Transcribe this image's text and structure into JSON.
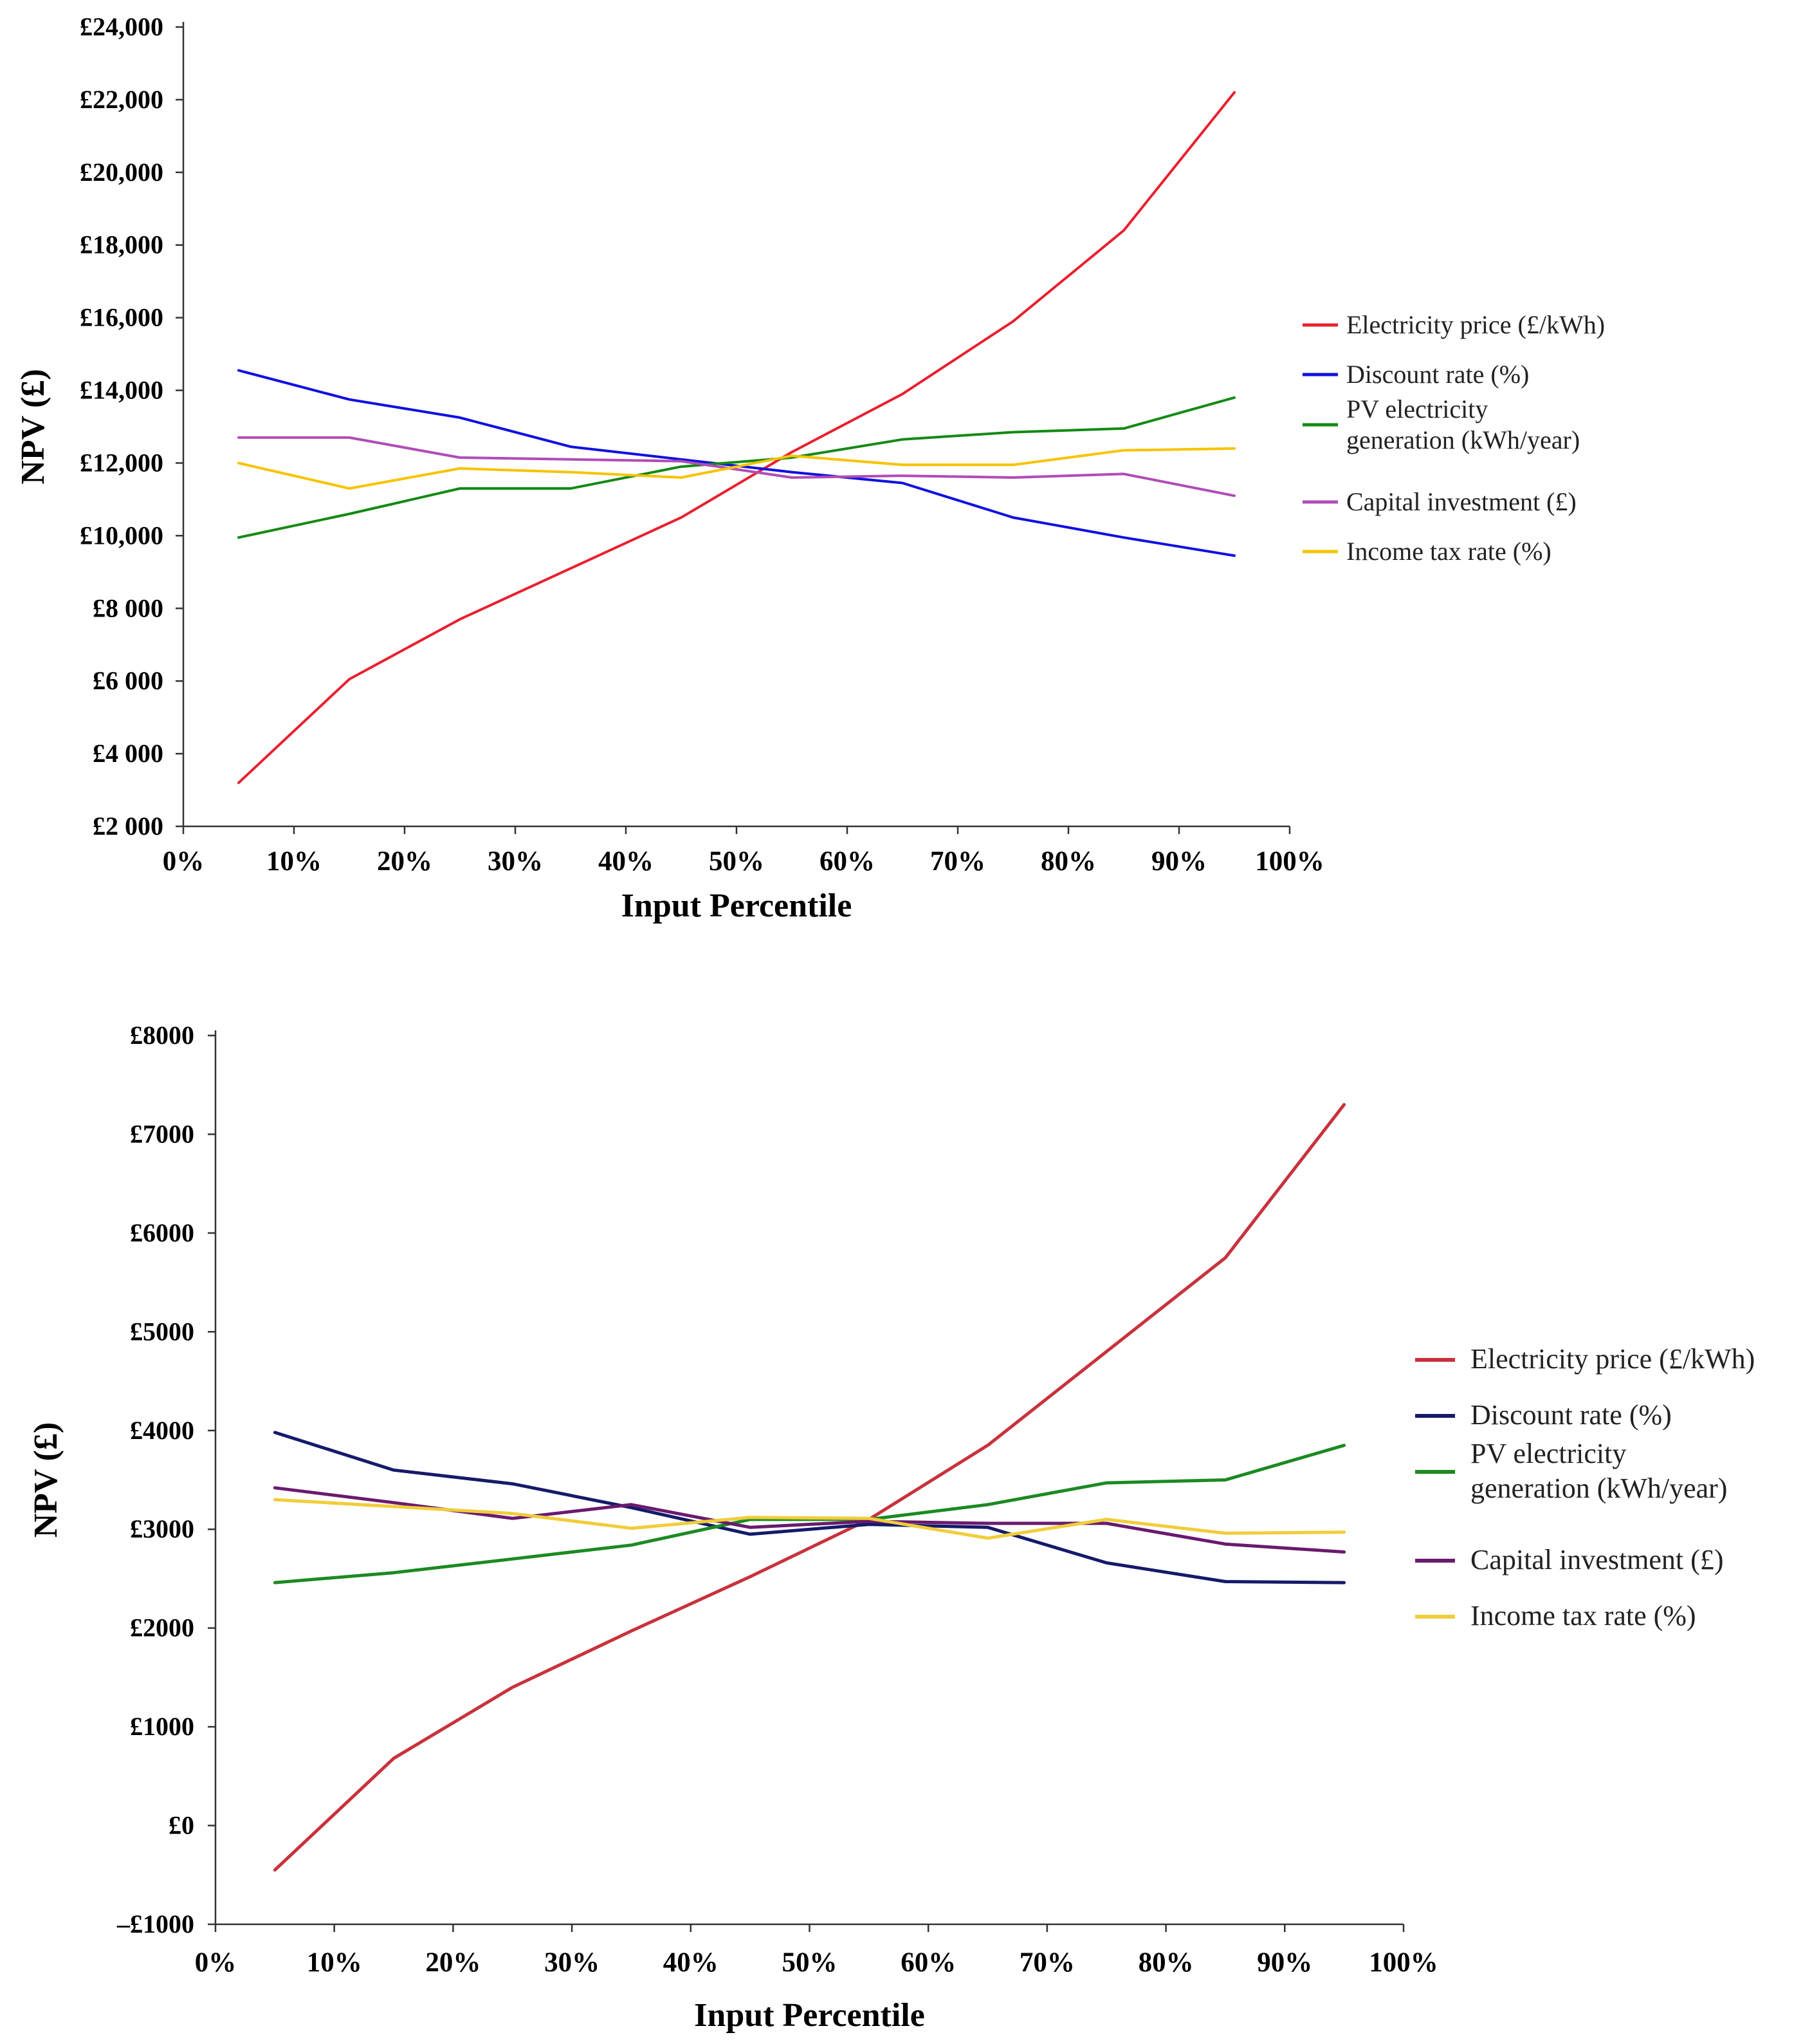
{
  "chart_data": [
    {
      "type": "line",
      "title": "",
      "xlabel": "Input Percentile",
      "ylabel": "NPV (£)",
      "xlim": [
        0,
        100
      ],
      "ylim": [
        2000,
        24000
      ],
      "x_ticks": [
        0,
        10,
        20,
        30,
        40,
        50,
        60,
        70,
        80,
        90,
        100
      ],
      "x_tick_labels": [
        "0%",
        "10%",
        "20%",
        "30%",
        "40%",
        "50%",
        "60%",
        "70%",
        "80%",
        "90%",
        "100%"
      ],
      "y_ticks": [
        2000,
        4000,
        6000,
        8000,
        10000,
        12000,
        14000,
        16000,
        18000,
        20000,
        22000,
        24000
      ],
      "y_tick_labels": [
        "£2 000",
        "£4 000",
        "£6 000",
        "£8 000",
        "£10,000",
        "£12,000",
        "£14,000",
        "£16,000",
        "£18,000",
        "£20,000",
        "£22,000",
        "£24,000"
      ],
      "grid": false,
      "legend_position": "right",
      "x": [
        5,
        15,
        25,
        35,
        45,
        55,
        65,
        75,
        85,
        95
      ],
      "series": [
        {
          "name": "Electricity price (£/kWh)",
          "color": "#e8202f",
          "values": [
            3200,
            6050,
            7700,
            9100,
            10500,
            12300,
            13900,
            15900,
            18400,
            22200
          ]
        },
        {
          "name": "Discount rate (%)",
          "color": "#1010e0",
          "values": [
            14550,
            13750,
            13250,
            12450,
            12100,
            11750,
            11450,
            10500,
            9950,
            9450
          ]
        },
        {
          "name": "PV electricity\ngeneration (kWh/year)",
          "color": "#138a13",
          "values": [
            9950,
            10600,
            11300,
            11300,
            11900,
            12150,
            12650,
            12850,
            12950,
            13800
          ]
        },
        {
          "name": "Capital investment (£)",
          "color": "#b04cb6",
          "values": [
            12700,
            12700,
            12150,
            12100,
            12050,
            11600,
            11650,
            11600,
            11700,
            11100
          ]
        },
        {
          "name": "Income tax rate (%)",
          "color": "#f7c300",
          "values": [
            12000,
            11300,
            11850,
            11750,
            11600,
            12200,
            11950,
            11950,
            12350,
            12400
          ]
        }
      ]
    },
    {
      "type": "line",
      "title": "",
      "xlabel": "Input Percentile",
      "ylabel": "NPV (£)",
      "xlim": [
        0,
        100
      ],
      "ylim": [
        -1000,
        8000
      ],
      "x_ticks": [
        0,
        10,
        20,
        30,
        40,
        50,
        60,
        70,
        80,
        90,
        100
      ],
      "x_tick_labels": [
        "0%",
        "10%",
        "20%",
        "30%",
        "40%",
        "50%",
        "60%",
        "70%",
        "80%",
        "90%",
        "100%"
      ],
      "y_ticks": [
        -1000,
        0,
        1000,
        2000,
        3000,
        4000,
        5000,
        6000,
        7000,
        8000
      ],
      "y_tick_labels": [
        "–£1000",
        "£0",
        "£1000",
        "£2000",
        "£3000",
        "£4000",
        "£5000",
        "£6000",
        "£7000",
        "£8000"
      ],
      "grid": false,
      "legend_position": "right",
      "x": [
        5,
        15,
        25,
        35,
        45,
        55,
        65,
        75,
        85,
        95
      ],
      "series": [
        {
          "name": "Electricity price (£/kWh)",
          "color": "#c8323c",
          "values": [
            -450,
            680,
            1400,
            1970,
            2520,
            3100,
            3850,
            4800,
            5750,
            7300
          ]
        },
        {
          "name": "Discount rate (%)",
          "color": "#151a6a",
          "values": [
            3980,
            3600,
            3460,
            3220,
            2950,
            3050,
            3020,
            2660,
            2470,
            2460
          ]
        },
        {
          "name": "PV electricity\ngeneration (kWh/year)",
          "color": "#1c8a22",
          "values": [
            2460,
            2560,
            2700,
            2840,
            3100,
            3100,
            3250,
            3470,
            3500,
            3850
          ]
        },
        {
          "name": "Capital investment (£)",
          "color": "#6a1a6e",
          "values": [
            3420,
            3270,
            3110,
            3250,
            3020,
            3080,
            3060,
            3060,
            2850,
            2770
          ]
        },
        {
          "name": "Income tax rate (%)",
          "color": "#f0cd3a",
          "values": [
            3300,
            3230,
            3160,
            3010,
            3120,
            3110,
            2910,
            3100,
            2960,
            2970
          ]
        }
      ]
    }
  ]
}
